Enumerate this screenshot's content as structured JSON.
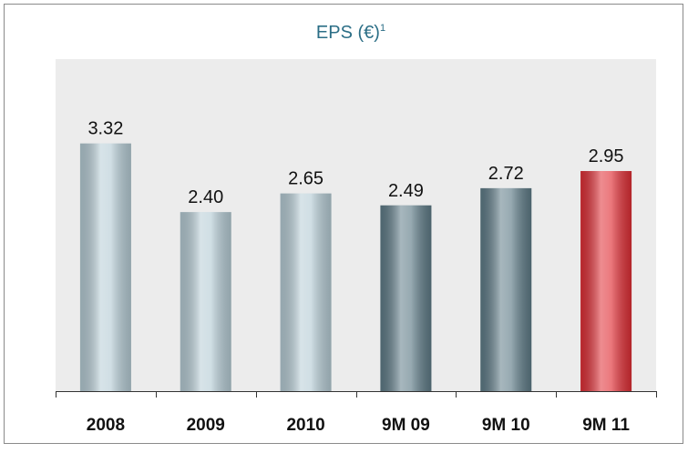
{
  "chart_data": {
    "type": "bar",
    "title": "EPS (€)",
    "title_superscript": "1",
    "categories": [
      "2008",
      "2009",
      "2010",
      "9M 09",
      "9M 10",
      "9M 11"
    ],
    "values": [
      3.32,
      2.4,
      2.65,
      2.49,
      2.72,
      2.95
    ],
    "value_labels": [
      "3.32",
      "2.40",
      "2.65",
      "2.49",
      "2.72",
      "2.95"
    ],
    "colors": [
      "#b7cdd6",
      "#b7cdd6",
      "#b7cdd6",
      "#5f7c88",
      "#5f7c88",
      "#e02f36"
    ],
    "ylim": [
      0,
      4.45
    ]
  }
}
